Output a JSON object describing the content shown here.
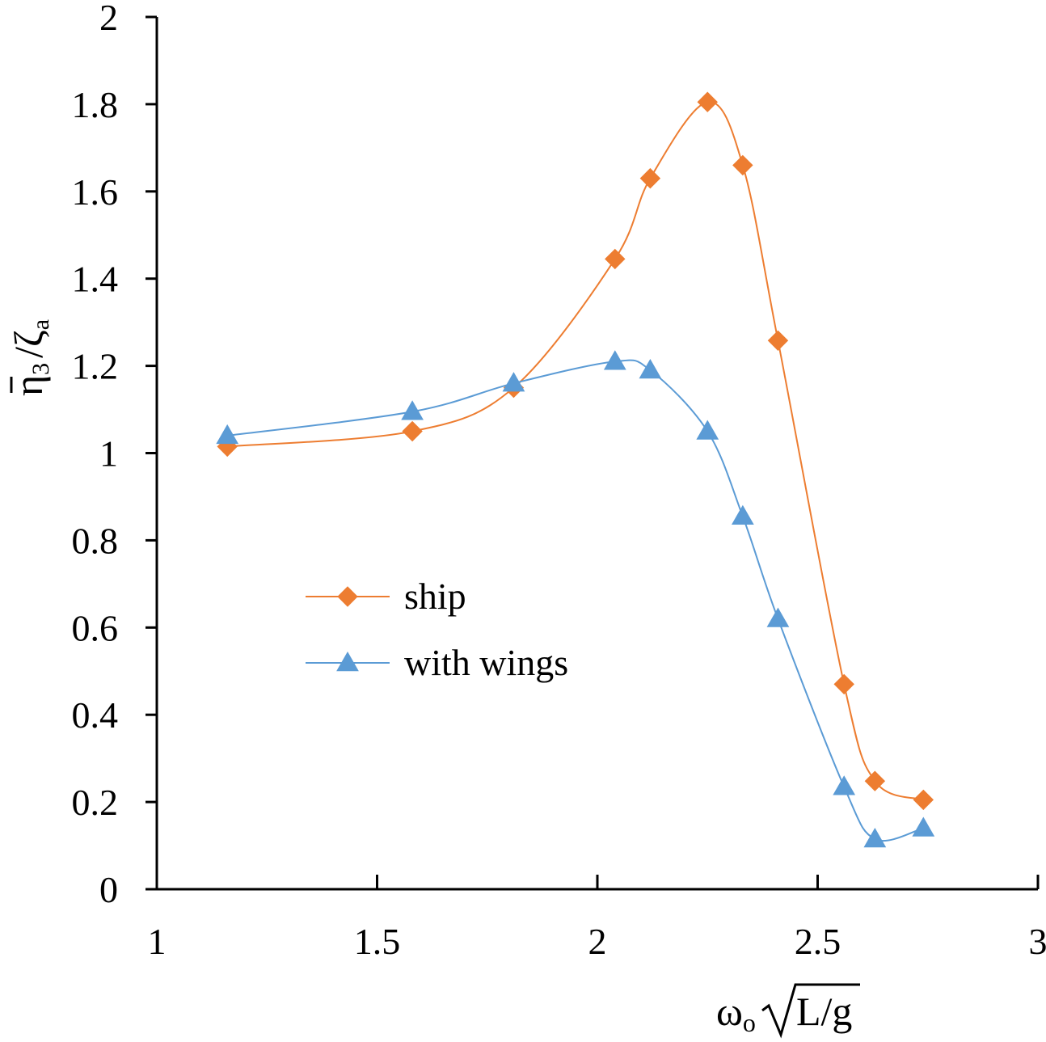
{
  "chart_data": {
    "type": "line",
    "title": "",
    "xlabel": {
      "omega": "ω",
      "sub": "o",
      "radicand": "L/g"
    },
    "ylabel": {
      "eta": "η",
      "eta_sub": "3",
      "slash": "/",
      "zeta": "ζ",
      "zeta_sub": "a"
    },
    "xlim": [
      1,
      3
    ],
    "ylim": [
      0,
      2
    ],
    "x_ticks": [
      "1",
      "1.5",
      "2",
      "2.5",
      "3"
    ],
    "y_ticks": [
      "0",
      "0.2",
      "0.4",
      "0.6",
      "0.8",
      "1",
      "1.2",
      "1.4",
      "1.6",
      "1.8",
      "2"
    ],
    "x_tick_values": [
      1,
      1.5,
      2,
      2.5,
      3
    ],
    "y_tick_values": [
      0,
      0.2,
      0.4,
      0.6,
      0.8,
      1,
      1.2,
      1.4,
      1.6,
      1.8,
      2
    ],
    "grid": false,
    "legend_position": "left-center",
    "series": [
      {
        "name": "ship",
        "marker": "diamond",
        "color": "#ED7D31",
        "x": [
          1.16,
          1.58,
          1.81,
          2.04,
          2.12,
          2.25,
          2.33,
          2.41,
          2.56,
          2.63,
          2.74
        ],
        "y": [
          1.015,
          1.05,
          1.15,
          1.445,
          1.63,
          1.805,
          1.66,
          1.258,
          0.47,
          0.248,
          0.205
        ]
      },
      {
        "name": "with wings",
        "marker": "triangle",
        "color": "#5B9BD5",
        "x": [
          1.16,
          1.58,
          1.81,
          2.04,
          2.12,
          2.25,
          2.33,
          2.41,
          2.56,
          2.63,
          2.74
        ],
        "y": [
          1.04,
          1.095,
          1.16,
          1.21,
          1.19,
          1.05,
          0.855,
          0.62,
          0.235,
          0.115,
          0.14
        ]
      }
    ]
  }
}
